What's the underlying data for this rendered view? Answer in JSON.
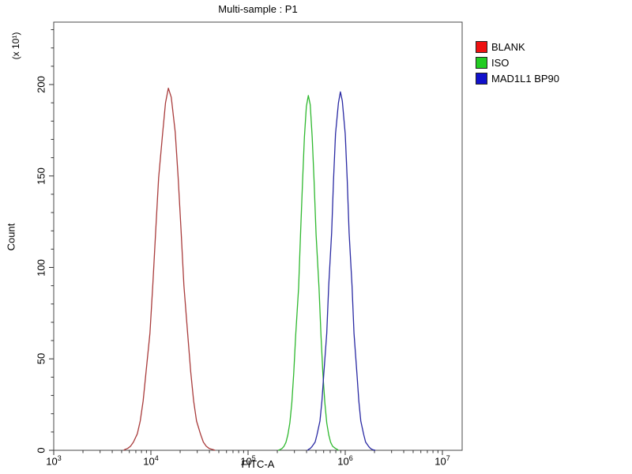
{
  "chart_data": {
    "type": "line",
    "title": "Multi-sample : P1",
    "xlabel": "FITC-A",
    "ylabel": "Count",
    "y_unit_label": "(x 10¹)",
    "x_scale": "log10",
    "x_range_log10": [
      3,
      7.2
    ],
    "ylim": [
      0,
      234
    ],
    "grid": false,
    "legend_position": "right-top",
    "frame_color": "#4a4a4a",
    "tick_color": "#333333",
    "x_ticks": [
      {
        "base": "10",
        "exp": "3",
        "log10": 3
      },
      {
        "base": "10",
        "exp": "4",
        "log10": 4
      },
      {
        "base": "10",
        "exp": "5",
        "log10": 5
      },
      {
        "base": "10",
        "exp": "6",
        "log10": 6
      },
      {
        "base": "10",
        "exp": "7",
        "log10": 7
      }
    ],
    "x_minor_subdivisions": [
      2,
      3,
      4,
      5,
      6,
      7,
      8,
      9
    ],
    "y_ticks": [
      {
        "label": "0",
        "value": 0
      },
      {
        "label": "50",
        "value": 50
      },
      {
        "label": "100",
        "value": 100
      },
      {
        "label": "150",
        "value": 150
      },
      {
        "label": "200",
        "value": 200
      }
    ],
    "y_minor_step": 10,
    "series": [
      {
        "name": "BLANK",
        "swatch_color": "#ee1111",
        "line_color": "#a93c3c",
        "points": [
          [
            3.72,
            0
          ],
          [
            3.73,
            0.4
          ],
          [
            3.76,
            1
          ],
          [
            3.79,
            2.2
          ],
          [
            3.82,
            4.5
          ],
          [
            3.86,
            9
          ],
          [
            3.89,
            16
          ],
          [
            3.92,
            27
          ],
          [
            3.95,
            43
          ],
          [
            3.99,
            64
          ],
          [
            4.02,
            91
          ],
          [
            4.05,
            120
          ],
          [
            4.08,
            149
          ],
          [
            4.12,
            173
          ],
          [
            4.15,
            190
          ],
          [
            4.18,
            198
          ],
          [
            4.21,
            193
          ],
          [
            4.25,
            174
          ],
          [
            4.28,
            150
          ],
          [
            4.31,
            121
          ],
          [
            4.34,
            90
          ],
          [
            4.38,
            63
          ],
          [
            4.41,
            43
          ],
          [
            4.44,
            27
          ],
          [
            4.47,
            16
          ],
          [
            4.51,
            9
          ],
          [
            4.54,
            4.5
          ],
          [
            4.57,
            2.2
          ],
          [
            4.6,
            1
          ],
          [
            4.64,
            0.4
          ],
          [
            4.66,
            0
          ]
        ]
      },
      {
        "name": "ISO",
        "swatch_color": "#22cc22",
        "line_color": "#2eb82e",
        "points": [
          [
            5.31,
            0
          ],
          [
            5.33,
            0.4
          ],
          [
            5.35,
            1
          ],
          [
            5.37,
            2.2
          ],
          [
            5.39,
            4.4
          ],
          [
            5.41,
            8.5
          ],
          [
            5.43,
            15
          ],
          [
            5.45,
            26
          ],
          [
            5.47,
            42
          ],
          [
            5.49,
            63
          ],
          [
            5.52,
            89
          ],
          [
            5.54,
            118
          ],
          [
            5.56,
            146
          ],
          [
            5.58,
            171
          ],
          [
            5.6,
            188
          ],
          [
            5.62,
            194
          ],
          [
            5.64,
            189
          ],
          [
            5.66,
            171
          ],
          [
            5.68,
            147
          ],
          [
            5.7,
            118
          ],
          [
            5.73,
            89
          ],
          [
            5.75,
            63
          ],
          [
            5.77,
            42
          ],
          [
            5.79,
            26
          ],
          [
            5.81,
            15
          ],
          [
            5.83,
            8.5
          ],
          [
            5.85,
            4.4
          ],
          [
            5.87,
            2.2
          ],
          [
            5.9,
            1
          ],
          [
            5.92,
            0.4
          ],
          [
            5.93,
            0
          ]
        ]
      },
      {
        "name": "MAD1L1 BP90",
        "swatch_color": "#1111cc",
        "line_color": "#2929a3",
        "points": [
          [
            5.61,
            0
          ],
          [
            5.62,
            0.4
          ],
          [
            5.64,
            1
          ],
          [
            5.66,
            2.2
          ],
          [
            5.69,
            4.5
          ],
          [
            5.71,
            8.6
          ],
          [
            5.74,
            16
          ],
          [
            5.76,
            27
          ],
          [
            5.78,
            42
          ],
          [
            5.81,
            64
          ],
          [
            5.83,
            90
          ],
          [
            5.86,
            119
          ],
          [
            5.88,
            148
          ],
          [
            5.9,
            173
          ],
          [
            5.93,
            190
          ],
          [
            5.95,
            196
          ],
          [
            5.97,
            191
          ],
          [
            6.0,
            173
          ],
          [
            6.02,
            148
          ],
          [
            6.04,
            119
          ],
          [
            6.07,
            90
          ],
          [
            6.09,
            64
          ],
          [
            6.12,
            42
          ],
          [
            6.14,
            27
          ],
          [
            6.16,
            16
          ],
          [
            6.19,
            8.6
          ],
          [
            6.21,
            4.5
          ],
          [
            6.24,
            2.2
          ],
          [
            6.26,
            1
          ],
          [
            6.28,
            0.4
          ],
          [
            6.31,
            0
          ]
        ]
      }
    ]
  }
}
